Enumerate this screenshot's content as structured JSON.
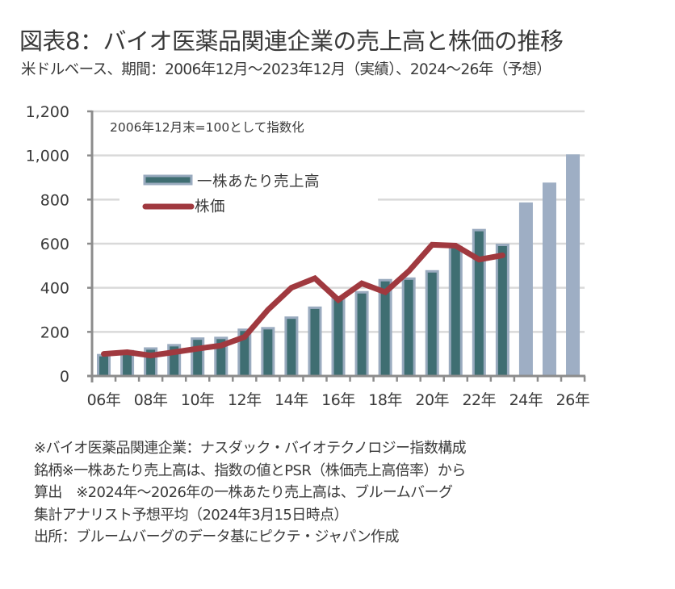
{
  "header": {
    "title": "図表8：バイオ医薬品関連企業の売上高と株価の推移",
    "subtitle": "米ドルベース、期間：2006年12月～2023年12月（実績）、2024～26年（予想）"
  },
  "chart_data": {
    "type": "bar",
    "title": "図表8：バイオ医薬品関連企業の売上高と株価の推移",
    "subtitle": "米ドルベース、期間：2006年12月～2023年12月（実績）、2024～26年（予想）",
    "annotation": "2006年12月末=100として指数化",
    "xlabel": "",
    "ylabel": "",
    "ylim": [
      0,
      1200
    ],
    "yticks": [
      0,
      200,
      400,
      600,
      800,
      1000,
      1200
    ],
    "ytick_labels": [
      "0",
      "200",
      "400",
      "600",
      "800",
      "1,000",
      "1,200"
    ],
    "grid": true,
    "legend_position": "top-left",
    "categories": [
      "06年",
      "07年",
      "08年",
      "09年",
      "10年",
      "11年",
      "12年",
      "13年",
      "14年",
      "15年",
      "16年",
      "17年",
      "18年",
      "19年",
      "20年",
      "21年",
      "22年",
      "23年",
      "24年",
      "25年",
      "26年"
    ],
    "xtick_labels": [
      "06年",
      "08年",
      "10年",
      "12年",
      "14年",
      "16年",
      "18年",
      "20年",
      "22年",
      "24年",
      "26年"
    ],
    "series": [
      {
        "name": "一株あたり売上高",
        "type": "bar",
        "color": "#3f6e72",
        "edge_color": "#9aabbf",
        "forecast_color": "#9eaec4",
        "forecast_from": "24年",
        "values": [
          100,
          118,
          130,
          145,
          175,
          178,
          215,
          222,
          270,
          315,
          360,
          385,
          440,
          447,
          480,
          590,
          667,
          600,
          787,
          877,
          1005
        ]
      },
      {
        "name": "株価",
        "type": "line",
        "color": "#a0393f",
        "values": [
          100,
          108,
          93,
          108,
          124,
          138,
          177,
          300,
          400,
          443,
          345,
          420,
          380,
          475,
          595,
          591,
          528,
          547,
          null,
          null,
          null
        ]
      }
    ]
  },
  "notes": [
    "※バイオ医薬品関連企業：ナスダック・バイオテクノロジー指数構成",
    "銘柄※一株あたり売上高は、指数の値とPSR（株価売上高倍率）から",
    "算出　※2024年～2026年の一株あたり売上高は、ブルームバーグ",
    "集計アナリスト予想平均（2024年3月15日時点）",
    "出所：ブルームバーグのデータ基にピクテ・ジャパン作成"
  ]
}
